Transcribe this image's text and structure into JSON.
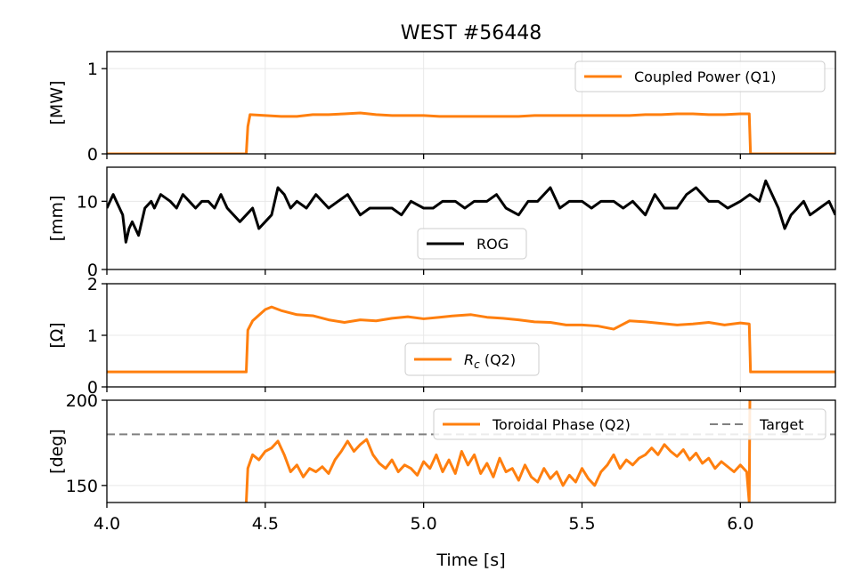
{
  "chart_data": {
    "type": "line",
    "title": "WEST #56448",
    "xlabel": "Time [s]",
    "xlim": [
      4.0,
      6.3
    ],
    "xticks": [
      4.0,
      4.5,
      5.0,
      5.5,
      6.0
    ],
    "xtick_labels": [
      "4.0",
      "4.5",
      "5.0",
      "5.5",
      "6.0"
    ],
    "grid": true,
    "panels": [
      {
        "ylabel": "[MW]",
        "ylim": [
          0,
          1.2
        ],
        "yticks": [
          0,
          1
        ],
        "ytick_labels": [
          "0",
          "1"
        ],
        "legend_position": "upper right",
        "series": [
          {
            "name": "Coupled Power (Q1)",
            "color": "#ff7f0e",
            "x": [
              4.0,
              4.44,
              4.445,
              4.452,
              4.5,
              4.55,
              4.6,
              4.65,
              4.7,
              4.75,
              4.8,
              4.85,
              4.9,
              4.95,
              5.0,
              5.05,
              5.1,
              5.15,
              5.2,
              5.25,
              5.3,
              5.35,
              5.4,
              5.45,
              5.5,
              5.55,
              5.6,
              5.65,
              5.7,
              5.75,
              5.8,
              5.85,
              5.9,
              5.95,
              6.0,
              6.028,
              6.032,
              6.3
            ],
            "y": [
              0,
              0,
              0.32,
              0.46,
              0.45,
              0.44,
              0.44,
              0.46,
              0.46,
              0.47,
              0.48,
              0.46,
              0.45,
              0.45,
              0.45,
              0.44,
              0.44,
              0.44,
              0.44,
              0.44,
              0.44,
              0.45,
              0.45,
              0.45,
              0.45,
              0.45,
              0.45,
              0.45,
              0.46,
              0.46,
              0.47,
              0.47,
              0.46,
              0.46,
              0.47,
              0.47,
              0,
              0
            ]
          }
        ]
      },
      {
        "ylabel": "[mm]",
        "ylim": [
          0,
          15
        ],
        "yticks": [
          0,
          10
        ],
        "ytick_labels": [
          "0",
          "10"
        ],
        "legend_position": "lower center",
        "series": [
          {
            "name": "ROG",
            "color": "#000000",
            "x": [
              4.0,
              4.02,
              4.03,
              4.05,
              4.06,
              4.07,
              4.08,
              4.1,
              4.12,
              4.14,
              4.15,
              4.17,
              4.2,
              4.22,
              4.24,
              4.26,
              4.28,
              4.3,
              4.32,
              4.34,
              4.36,
              4.38,
              4.4,
              4.42,
              4.44,
              4.46,
              4.48,
              4.5,
              4.52,
              4.54,
              4.56,
              4.58,
              4.6,
              4.63,
              4.66,
              4.7,
              4.73,
              4.76,
              4.8,
              4.83,
              4.86,
              4.9,
              4.93,
              4.96,
              5.0,
              5.03,
              5.06,
              5.1,
              5.13,
              5.16,
              5.2,
              5.23,
              5.26,
              5.3,
              5.33,
              5.36,
              5.4,
              5.43,
              5.46,
              5.5,
              5.53,
              5.56,
              5.6,
              5.63,
              5.66,
              5.7,
              5.73,
              5.76,
              5.8,
              5.83,
              5.86,
              5.9,
              5.93,
              5.96,
              6.0,
              6.03,
              6.06,
              6.08,
              6.1,
              6.12,
              6.14,
              6.16,
              6.18,
              6.2,
              6.22,
              6.25,
              6.28,
              6.3
            ],
            "y": [
              9,
              11,
              10,
              8,
              4,
              6,
              7,
              5,
              9,
              10,
              9,
              11,
              10,
              9,
              11,
              10,
              9,
              10,
              10,
              9,
              11,
              9,
              8,
              7,
              8,
              9,
              6,
              7,
              8,
              12,
              11,
              9,
              10,
              9,
              11,
              9,
              10,
              11,
              8,
              9,
              9,
              9,
              8,
              10,
              9,
              9,
              10,
              10,
              9,
              10,
              10,
              11,
              9,
              8,
              10,
              10,
              12,
              9,
              10,
              10,
              9,
              10,
              10,
              9,
              10,
              8,
              11,
              9,
              9,
              11,
              12,
              10,
              10,
              9,
              10,
              11,
              10,
              13,
              11,
              9,
              6,
              8,
              9,
              10,
              8,
              9,
              10,
              8
            ]
          }
        ]
      },
      {
        "ylabel": "[Ω]",
        "ylim": [
          0,
          2
        ],
        "yticks": [
          0,
          1,
          2
        ],
        "ytick_labels": [
          "0",
          "1",
          "2"
        ],
        "legend_position": "lower center",
        "series": [
          {
            "name": "R_c (Q2)",
            "color": "#ff7f0e",
            "x": [
              4.0,
              4.44,
              4.445,
              4.46,
              4.5,
              4.52,
              4.55,
              4.6,
              4.65,
              4.7,
              4.75,
              4.8,
              4.85,
              4.9,
              4.95,
              5.0,
              5.05,
              5.1,
              5.15,
              5.2,
              5.25,
              5.3,
              5.35,
              5.4,
              5.45,
              5.5,
              5.55,
              5.6,
              5.65,
              5.7,
              5.75,
              5.8,
              5.85,
              5.9,
              5.95,
              6.0,
              6.028,
              6.032,
              6.3
            ],
            "y": [
              0.29,
              0.29,
              1.1,
              1.28,
              1.5,
              1.55,
              1.48,
              1.4,
              1.38,
              1.3,
              1.25,
              1.3,
              1.28,
              1.33,
              1.36,
              1.32,
              1.35,
              1.38,
              1.4,
              1.35,
              1.33,
              1.3,
              1.26,
              1.25,
              1.2,
              1.2,
              1.18,
              1.12,
              1.28,
              1.26,
              1.23,
              1.2,
              1.22,
              1.25,
              1.2,
              1.24,
              1.22,
              0.29,
              0.29
            ]
          }
        ]
      },
      {
        "ylabel": "[deg]",
        "ylim": [
          140,
          200
        ],
        "yticks": [
          150,
          200
        ],
        "ytick_labels": [
          "150",
          "200"
        ],
        "legend_position": "upper right",
        "series": [
          {
            "name": "Toroidal Phase (Q2)",
            "color": "#ff7f0e",
            "x": [
              4.44,
              4.445,
              4.46,
              4.48,
              4.5,
              4.52,
              4.54,
              4.56,
              4.58,
              4.6,
              4.62,
              4.64,
              4.66,
              4.68,
              4.7,
              4.72,
              4.74,
              4.76,
              4.78,
              4.8,
              4.82,
              4.84,
              4.86,
              4.88,
              4.9,
              4.92,
              4.94,
              4.96,
              4.98,
              5.0,
              5.02,
              5.04,
              5.06,
              5.08,
              5.1,
              5.12,
              5.14,
              5.16,
              5.18,
              5.2,
              5.22,
              5.24,
              5.26,
              5.28,
              5.3,
              5.32,
              5.34,
              5.36,
              5.38,
              5.4,
              5.42,
              5.44,
              5.46,
              5.48,
              5.5,
              5.52,
              5.54,
              5.56,
              5.58,
              5.6,
              5.62,
              5.64,
              5.66,
              5.68,
              5.7,
              5.72,
              5.74,
              5.76,
              5.78,
              5.8,
              5.82,
              5.84,
              5.86,
              5.88,
              5.9,
              5.92,
              5.94,
              5.96,
              5.98,
              6.0,
              6.02,
              6.028,
              6.03,
              6.032
            ],
            "y": [
              140,
              160,
              168,
              165,
              170,
              172,
              176,
              168,
              158,
              162,
              155,
              160,
              158,
              161,
              157,
              165,
              170,
              176,
              170,
              174,
              177,
              168,
              163,
              160,
              165,
              158,
              162,
              160,
              156,
              164,
              160,
              168,
              158,
              165,
              157,
              170,
              162,
              168,
              157,
              163,
              155,
              166,
              158,
              160,
              153,
              162,
              155,
              152,
              160,
              154,
              158,
              150,
              156,
              152,
              160,
              154,
              150,
              158,
              162,
              168,
              160,
              165,
              162,
              166,
              168,
              172,
              168,
              174,
              170,
              167,
              171,
              165,
              169,
              163,
              166,
              160,
              164,
              161,
              158,
              162,
              158,
              140,
              200,
              200
            ]
          },
          {
            "name": "Target",
            "color": "#808080",
            "dashed": true,
            "x": [
              4.0,
              6.3
            ],
            "y": [
              180,
              180
            ]
          }
        ]
      }
    ]
  }
}
